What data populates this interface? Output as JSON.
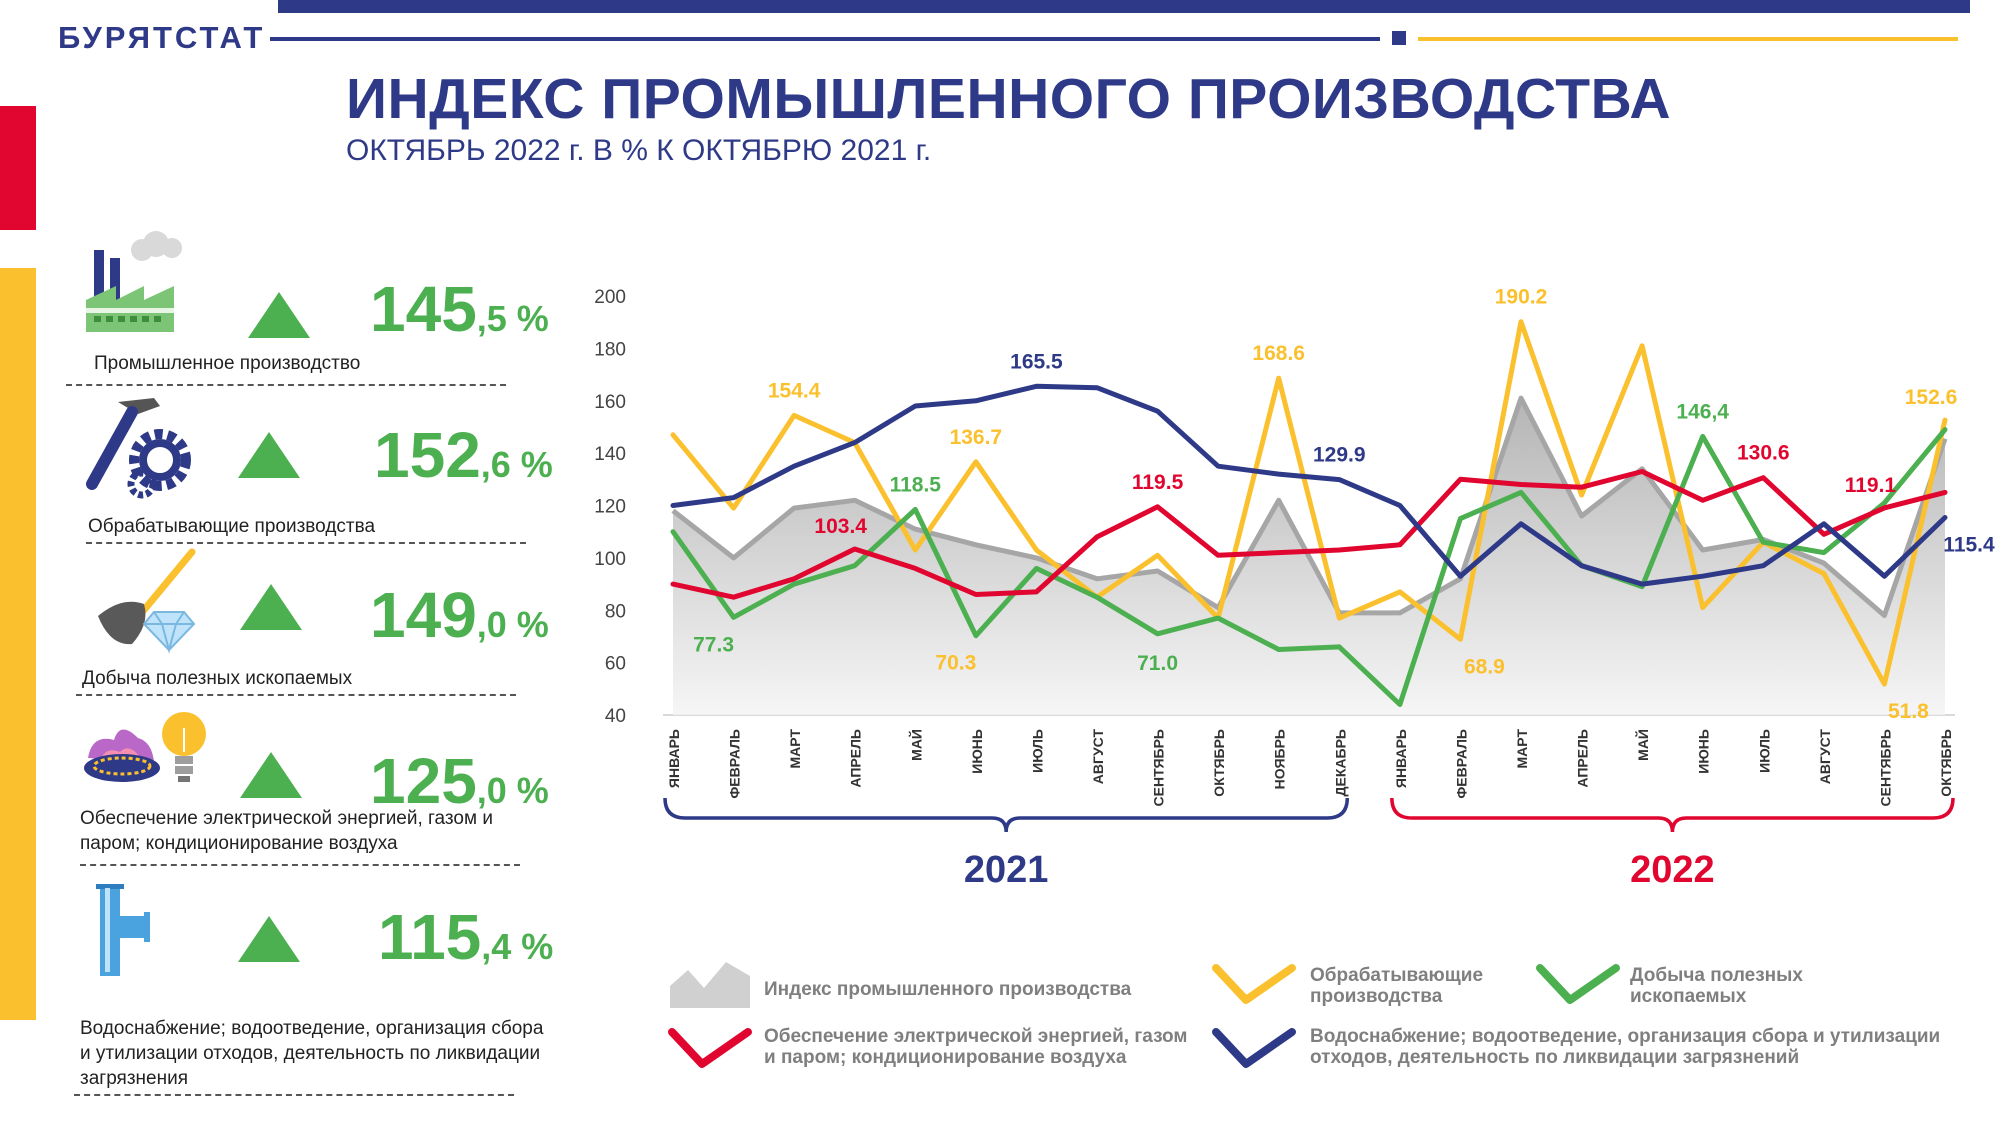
{
  "header": {
    "brand": "БУРЯТСТАТ",
    "title": "ИНДЕКС ПРОМЫШЛЕННОГО ПРОИЗВОДСТВА",
    "subtitle": "ОКТЯБРЬ 2022 г. В % К ОКТЯБРЮ 2021 г."
  },
  "colors": {
    "navy": "#2e3a87",
    "red": "#e0062f",
    "yellow": "#fbc02d",
    "green": "#4caf50",
    "gray": "#a6a6a6"
  },
  "kpis": [
    {
      "int": "145",
      "dec": ",5 %",
      "label": "Промышленное производство",
      "icon": "factory-icon",
      "trend": "up-triangle-icon"
    },
    {
      "int": "152",
      "dec": ",6 %",
      "label": "Обрабатывающие производства",
      "icon": "hammer-gear-icon",
      "trend": "up-triangle-icon"
    },
    {
      "int": "149",
      "dec": ",0 %",
      "label": "Добыча полезных ископаемых",
      "icon": "shovel-diamond-icon",
      "trend": "up-triangle-icon"
    },
    {
      "int": "125",
      "dec": ",0 %",
      "label": "Обеспечение электрической энергией, газом и паром; кондиционирование воздуха",
      "icon": "gas-lamp-icon",
      "trend": "up-triangle-icon"
    },
    {
      "int": "115",
      "dec": ",4 %",
      "label": "Водоснабжение; водоотведение, организация сбора и утилизации отходов, деятельность по ликвидации загрязнения",
      "icon": "pipe-icon",
      "trend": "up-triangle-icon"
    }
  ],
  "chart_data": {
    "type": "line",
    "ylim": [
      40,
      200
    ],
    "yticks": [
      "40",
      "60",
      "80",
      "100",
      "120",
      "140",
      "160",
      "180",
      "200"
    ],
    "categories": [
      "ЯНВАРЬ",
      "ФЕВРАЛЬ",
      "МАРТ",
      "АПРЕЛЬ",
      "МАЙ",
      "ИЮНЬ",
      "ИЮЛЬ",
      "АВГУСТ",
      "СЕНТЯБРЬ",
      "ОКТЯБРЬ",
      "НОЯБРЬ",
      "ДЕКАБРЬ",
      "ЯНВАРЬ",
      "ФЕВРАЛЬ",
      "МАРТ",
      "АПРЕЛЬ",
      "МАЙ",
      "ИЮНЬ",
      "ИЮЛЬ",
      "АВГУСТ",
      "СЕНТЯБРЬ",
      "ОКТЯБРЬ"
    ],
    "years": [
      {
        "label": "2021",
        "from": 0,
        "to": 11,
        "color": "#2e3a87"
      },
      {
        "label": "2022",
        "from": 12,
        "to": 21,
        "color": "#e0062f"
      }
    ],
    "series": [
      {
        "name": "Индекс промышленного производства",
        "kind": "area",
        "color": "#a6a6a6",
        "values": [
          118,
          100,
          119,
          122,
          111,
          105,
          100,
          92,
          95,
          81,
          122,
          79,
          79,
          92,
          161,
          116,
          134,
          103,
          107,
          98,
          78,
          145.5
        ]
      },
      {
        "name": "Обрабатывающие производства",
        "kind": "line",
        "color": "#fbc02d",
        "values": [
          147,
          119,
          154.4,
          144,
          103,
          136.7,
          103,
          85,
          101,
          77,
          168.6,
          77,
          87,
          68.9,
          190.2,
          124,
          181,
          81,
          106,
          94,
          51.8,
          152.6
        ]
      },
      {
        "name": "Добыча полезных ископаемых",
        "kind": "line",
        "color": "#4caf50",
        "values": [
          110,
          77.3,
          90,
          97,
          118.5,
          70.3,
          96,
          85,
          71.0,
          77,
          65,
          66,
          44,
          115,
          125,
          97,
          89,
          146.4,
          106,
          102,
          121,
          149
        ]
      },
      {
        "name": "Обеспечение электрической энергией, газом и паром; кондиционирование воздуха",
        "kind": "line",
        "color": "#e0062f",
        "values": [
          90,
          85,
          92,
          103.4,
          96,
          86,
          87,
          108,
          119.5,
          101,
          102,
          103,
          105,
          130,
          128,
          127,
          133,
          122,
          130.6,
          109,
          119.1,
          125
        ]
      },
      {
        "name": "Водоснабжение; водоотведение, организация сбора и утилизации отходов, деятельность по ликвидации загрязнений",
        "kind": "line",
        "color": "#2e3a87",
        "values": [
          120,
          123,
          135,
          144,
          158,
          160,
          165.5,
          165,
          156,
          135,
          132,
          129.9,
          120,
          93,
          113,
          97,
          90,
          93,
          97,
          113,
          93,
          115.4
        ]
      }
    ],
    "annotations": [
      {
        "text": "154.4",
        "series": 1,
        "index": 2,
        "color": "#fbc02d",
        "pos": "above"
      },
      {
        "text": "136.7",
        "series": 1,
        "index": 5,
        "color": "#fbc02d",
        "pos": "above"
      },
      {
        "text": "168.6",
        "series": 1,
        "index": 10,
        "color": "#fbc02d",
        "pos": "above"
      },
      {
        "text": "190.2",
        "series": 1,
        "index": 14,
        "color": "#fbc02d",
        "pos": "above"
      },
      {
        "text": "152.6",
        "series": 1,
        "index": 21,
        "color": "#fbc02d",
        "pos": "above-left"
      },
      {
        "text": "68.9",
        "series": 1,
        "index": 13,
        "color": "#fbc02d",
        "pos": "below-right"
      },
      {
        "text": "51.8",
        "series": 1,
        "index": 20,
        "color": "#fbc02d",
        "pos": "below-right"
      },
      {
        "text": "77.3",
        "series": 2,
        "index": 1,
        "color": "#4caf50",
        "pos": "below-left"
      },
      {
        "text": "118.5",
        "series": 2,
        "index": 4,
        "color": "#4caf50",
        "pos": "above"
      },
      {
        "text": "70.3",
        "series": 2,
        "index": 5,
        "color": "#fbc02d",
        "pos": "below-left"
      },
      {
        "text": "71.0",
        "series": 2,
        "index": 8,
        "color": "#4caf50",
        "pos": "below"
      },
      {
        "text": "146,4",
        "series": 2,
        "index": 17,
        "color": "#4caf50",
        "pos": "above"
      },
      {
        "text": "103.4",
        "series": 3,
        "index": 3,
        "color": "#e0062f",
        "pos": "above-left"
      },
      {
        "text": "119.5",
        "series": 3,
        "index": 8,
        "color": "#e0062f",
        "pos": "above"
      },
      {
        "text": "130.6",
        "series": 3,
        "index": 18,
        "color": "#e0062f",
        "pos": "above"
      },
      {
        "text": "119.1",
        "series": 3,
        "index": 20,
        "color": "#e0062f",
        "pos": "above-left"
      },
      {
        "text": "165.5",
        "series": 4,
        "index": 6,
        "color": "#2e3a87",
        "pos": "above"
      },
      {
        "text": "129.9",
        "series": 4,
        "index": 11,
        "color": "#2e3a87",
        "pos": "above"
      },
      {
        "text": "115.4",
        "series": 4,
        "index": 21,
        "color": "#2e3a87",
        "pos": "below-right"
      }
    ]
  },
  "legend": [
    {
      "label": "Индекс промышленного производства",
      "type": "area",
      "color": "#c8c8c8"
    },
    {
      "label": "Обрабатывающие производства",
      "type": "line",
      "color": "#fbc02d"
    },
    {
      "label": "Добыча полезных ископаемых",
      "type": "line",
      "color": "#4caf50"
    },
    {
      "label": "Обеспечение электрической энергией, газом и паром; кондиционирование воздуха",
      "type": "line",
      "color": "#e0062f"
    },
    {
      "label": "Водоснабжение; водоотведение, организация сбора и утилизации отходов, деятельность по ликвидации загрязнений",
      "type": "line",
      "color": "#2e3a87"
    }
  ]
}
